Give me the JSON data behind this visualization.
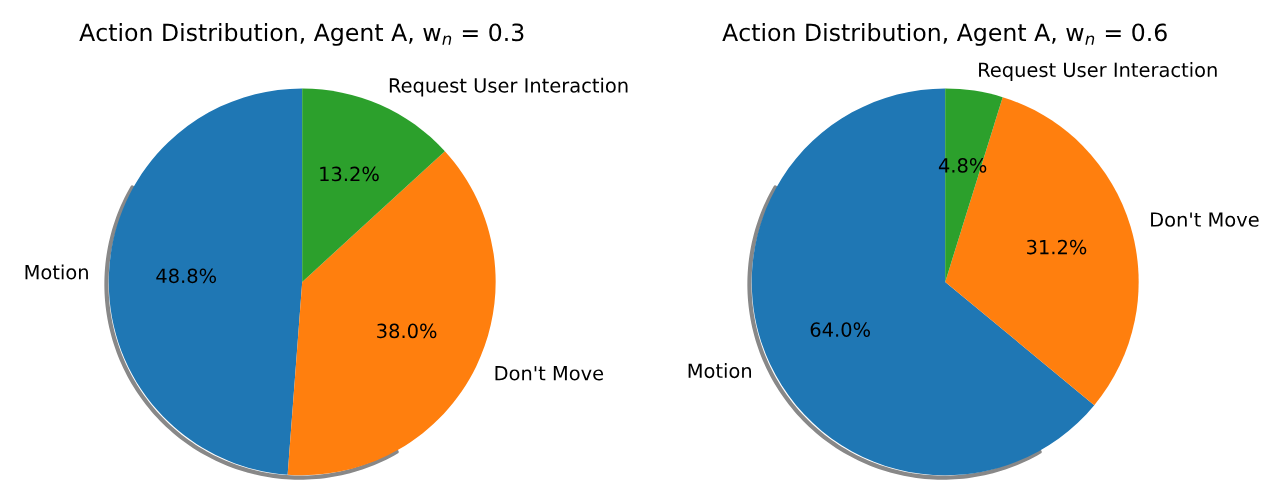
{
  "chart_data": [
    {
      "type": "pie",
      "title": "Action Distribution, Agent A, w$_{n}$ = 0.3",
      "categories": [
        "Motion",
        "Don't Move",
        "Request User Interaction"
      ],
      "values": [
        48.8,
        38.0,
        13.2
      ],
      "colors": [
        "#1f77b4",
        "#ff7f0e",
        "#2ca02c"
      ],
      "value_labels": [
        "48.8%",
        "38.0%",
        "13.2%"
      ]
    },
    {
      "type": "pie",
      "title": "Action Distribution, Agent A, w$_{n}$ = 0.6",
      "categories": [
        "Motion",
        "Don't Move",
        "Request User Interaction"
      ],
      "values": [
        64.0,
        31.2,
        4.8
      ],
      "colors": [
        "#1f77b4",
        "#ff7f0e",
        "#2ca02c"
      ],
      "value_labels": [
        "64.0%",
        "31.2%",
        "4.8%"
      ]
    }
  ]
}
